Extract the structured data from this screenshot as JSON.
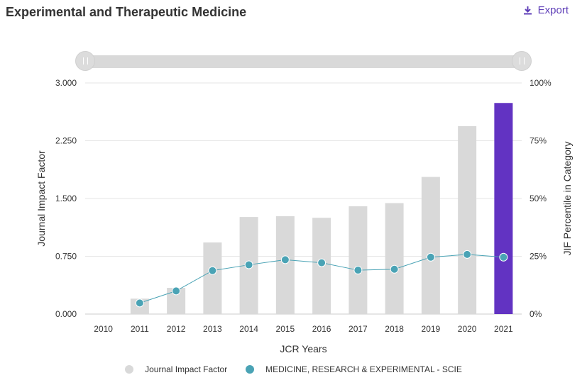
{
  "header": {
    "title": "Experimental and Therapeutic Medicine",
    "export_label": "Export"
  },
  "chart_data": {
    "type": "bar",
    "categories": [
      "2010",
      "2011",
      "2012",
      "2013",
      "2014",
      "2015",
      "2016",
      "2017",
      "2018",
      "2019",
      "2020",
      "2021"
    ],
    "xlabel": "JCR Years",
    "ylabel": "Journal Impact Factor",
    "y2label": "JIF Percentile in Category",
    "ylim": [
      0,
      3
    ],
    "y2lim": [
      0,
      100
    ],
    "yticks": [
      "0.000",
      "0.750",
      "1.500",
      "2.250",
      "3.000"
    ],
    "y2ticks": [
      "0%",
      "25%",
      "50%",
      "75%",
      "100%"
    ],
    "grid": true,
    "legend_position": "bottom-center",
    "series": [
      {
        "name": "Journal Impact Factor",
        "kind": "bar",
        "color": "#d9d9d9",
        "highlight_color": "#6233c2",
        "highlight_category": "2021",
        "values": [
          null,
          0.2,
          0.34,
          0.93,
          1.26,
          1.27,
          1.25,
          1.4,
          1.44,
          1.78,
          2.44,
          2.74
        ]
      },
      {
        "name": "MEDICINE, RESEARCH & EXPERIMENTAL - SCIE",
        "kind": "line",
        "axis": "right",
        "color": "#4aa3b5",
        "values": [
          null,
          4.8,
          10,
          18.8,
          21.3,
          23.5,
          22.2,
          19,
          19.4,
          24.6,
          25.8,
          24.6
        ]
      }
    ]
  }
}
